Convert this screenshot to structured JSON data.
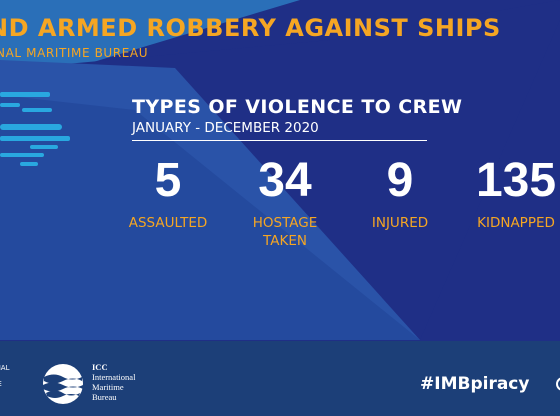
{
  "header": {
    "title": "ND ARMED ROBBERY AGAINST SHIPS",
    "subtitle": "ONAL MARITIME BUREAU"
  },
  "panel": {
    "title": "TYPES OF VIOLENCE TO CREW",
    "period": "JANUARY - DECEMBER 2020"
  },
  "stats": [
    {
      "value": "5",
      "label": "ASSAULTED"
    },
    {
      "value": "34",
      "label": "HOSTAGE TAKEN"
    },
    {
      "value": "9",
      "label": "INJURED"
    },
    {
      "value": "135",
      "label": "KIDNAPPED"
    }
  ],
  "footer": {
    "left_line1": "IONAL",
    "left_line2": "RCE",
    "icc_line1": "ICC",
    "icc_line2": "International",
    "icc_line3": "Maritime",
    "icc_line4": "Bureau",
    "hashtag": "#IMBpiracy"
  },
  "colors": {
    "accent": "#f5a623",
    "background": "#1f2f86",
    "footer": "#1c3f78",
    "wave": "#29a8e0"
  }
}
